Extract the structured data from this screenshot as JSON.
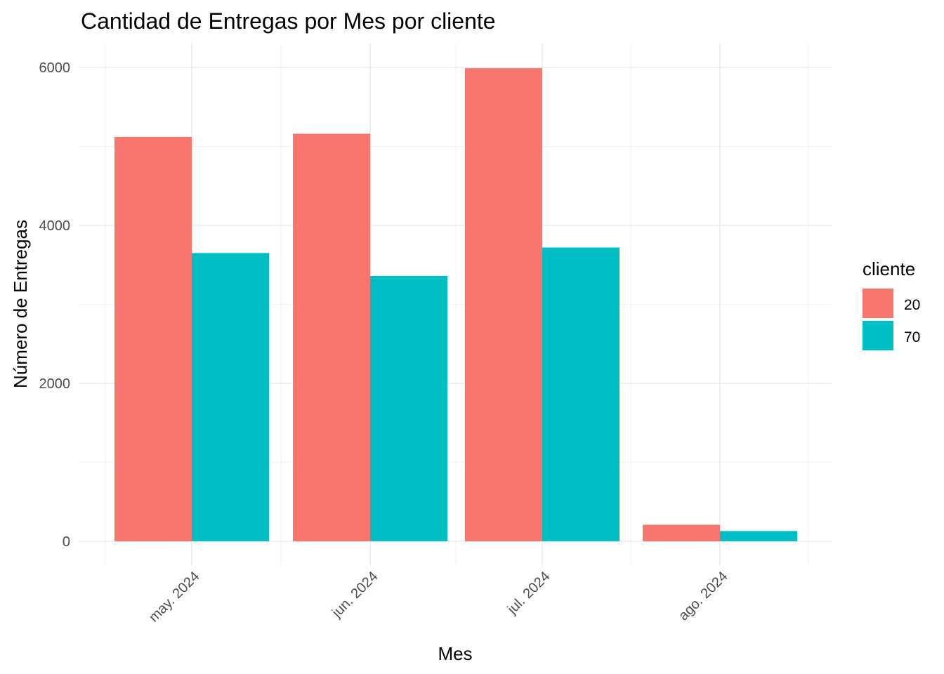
{
  "chart_data": {
    "type": "bar",
    "title": "Cantidad de Entregas por Mes por cliente",
    "xlabel": "Mes",
    "ylabel": "Número de Entregas",
    "categories": [
      "may. 2024",
      "jun. 2024",
      "jul. 2024",
      "ago. 2024"
    ],
    "series": [
      {
        "name": "20",
        "color": "#F8766D",
        "values": [
          5120,
          5160,
          5990,
          210
        ]
      },
      {
        "name": "70",
        "color": "#00BFC4",
        "values": [
          3650,
          3360,
          3720,
          130
        ]
      }
    ],
    "yticks": [
      0,
      2000,
      4000,
      6000
    ],
    "ylim": [
      0,
      6000
    ],
    "grid": true,
    "legend": {
      "title": "cliente",
      "position": "right"
    }
  }
}
